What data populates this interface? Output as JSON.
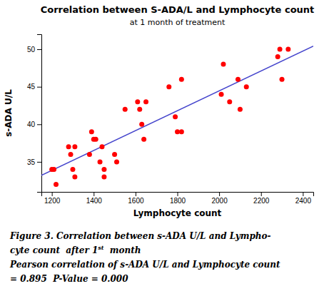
{
  "chart_data": {
    "type": "scatter",
    "title": "Correlation between S-ADA/L and Lymphocyte count",
    "subtitle": "at 1 month of treatment",
    "xlabel": "Lymphocyte count",
    "ylabel": "s-ADA U/L",
    "series": [
      {
        "type": "scatter",
        "color": "#ff0000",
        "x": [
          1200,
          1210,
          1220,
          1280,
          1290,
          1300,
          1310,
          1310,
          1380,
          1390,
          1400,
          1410,
          1430,
          1440,
          1450,
          1450,
          1500,
          1510,
          1550,
          1610,
          1620,
          1630,
          1640,
          1650,
          1760,
          1790,
          1800,
          1820,
          1820,
          2010,
          2020,
          2050,
          2090,
          2100,
          2130,
          2280,
          2290,
          2300,
          2330
        ],
        "values": [
          34,
          34,
          32,
          37,
          36,
          34,
          33,
          37,
          36,
          39,
          38,
          38,
          35,
          37,
          34,
          33,
          36,
          35,
          42,
          43,
          42,
          40,
          38,
          43,
          45,
          41,
          39,
          46,
          39,
          44,
          48,
          43,
          46,
          42,
          45,
          49,
          50,
          46,
          50
        ]
      },
      {
        "type": "line",
        "color": "#4444cc",
        "x": [
          1150,
          2450
        ],
        "values": [
          33.2113,
          50.4245
        ]
      }
    ],
    "xlim": [
      1150,
      2450
    ],
    "ylim": [
      31,
      52
    ],
    "xticks": [
      1200,
      1400,
      1600,
      1800,
      2000,
      2200,
      2400
    ],
    "yticks": [
      35,
      40,
      45,
      50
    ],
    "grid": false,
    "annotations": [
      "Figure 3. Correlation between s-ADA U/L and Lympho-",
      "cyte count  after 1",
      "st",
      "  month",
      "Pearson correlation of s-ADA U/L and Lymphocyte count",
      "= 0.895  P-Value = 0.000"
    ]
  }
}
